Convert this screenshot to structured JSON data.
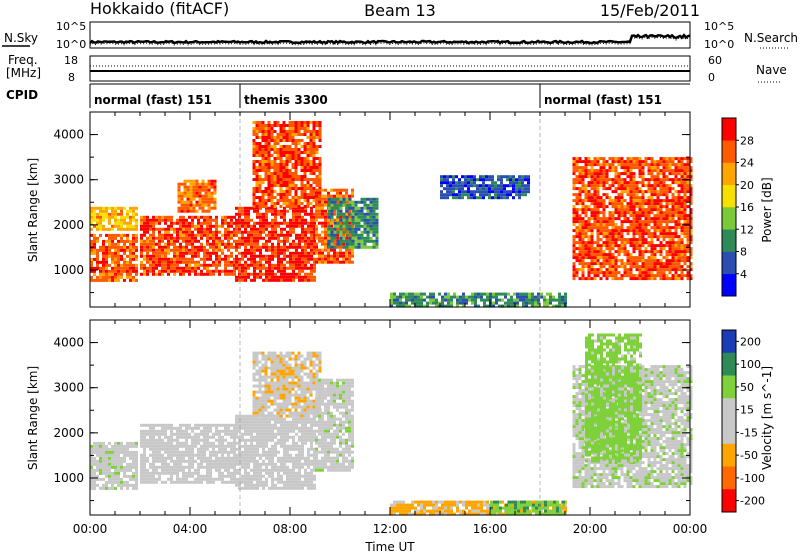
{
  "header": {
    "radar": "Hokkaido (fitACF)",
    "beam": "Beam 13",
    "date": "15/Feb/2011"
  },
  "top_labels": {
    "nsky": "N.Sky",
    "freq_line1": "Freq.",
    "freq_line2": "[MHz]",
    "cpid": "CPID",
    "nsearch": "N.Search",
    "nave": "Nave",
    "noise_ticks_left": [
      "10^5",
      "10^0"
    ],
    "noise_ticks_right": [
      "10^5",
      "10^0"
    ],
    "freq_ticks": [
      "18",
      "8"
    ],
    "nave_ticks": [
      "60",
      "0"
    ]
  },
  "cpid_segments": [
    {
      "label": "normal (fast) 151",
      "start_hour": 0,
      "end_hour": 6
    },
    {
      "label": "themis 3300",
      "start_hour": 6,
      "end_hour": 18
    },
    {
      "label": "normal (fast) 151",
      "start_hour": 18,
      "end_hour": 24
    }
  ],
  "colors": {
    "power_scale": [
      "#0000ff",
      "#2a4fb0",
      "#2e8b57",
      "#7cc93a",
      "#f5e000",
      "#ffa500",
      "#ff5a00",
      "#ff0000"
    ],
    "velocity_scale": [
      "#1a3cb4",
      "#2e8b57",
      "#7fd13b",
      "#c8c8c8",
      "#c8c8c8",
      "#ffa500",
      "#ff6a00",
      "#ff0000"
    ]
  },
  "chart_data": [
    {
      "type": "heatmap",
      "panel": "power",
      "ylabel": "Slant Range [km]",
      "xlabel": "",
      "xlim": [
        "00:00",
        "00:00"
      ],
      "ylim": [
        180,
        4500
      ],
      "xticks": [
        "00:00",
        "04:00",
        "08:00",
        "12:00",
        "16:00",
        "20:00",
        "00:00"
      ],
      "yticks": [
        1000,
        2000,
        3000,
        4000
      ],
      "colorbar": {
        "label": "Power [dB]",
        "ticks": [
          4,
          8,
          12,
          16,
          20,
          24,
          28
        ]
      },
      "regions": [
        {
          "start_hour": 0.0,
          "end_hour": 1.9,
          "range_km": [
            800,
            1800
          ],
          "value_db": 26
        },
        {
          "start_hour": 0.0,
          "end_hour": 1.9,
          "range_km": [
            1900,
            2400
          ],
          "value_db": 21
        },
        {
          "start_hour": 2.0,
          "end_hour": 5.8,
          "range_km": [
            900,
            2200
          ],
          "value_db": 27
        },
        {
          "start_hour": 3.5,
          "end_hour": 5.0,
          "range_km": [
            2300,
            3000
          ],
          "value_db": 25
        },
        {
          "start_hour": 5.8,
          "end_hour": 9.0,
          "range_km": [
            800,
            2400
          ],
          "value_db": 29
        },
        {
          "start_hour": 6.5,
          "end_hour": 9.2,
          "range_km": [
            2400,
            4300
          ],
          "value_db": 27
        },
        {
          "start_hour": 9.0,
          "end_hour": 10.5,
          "range_km": [
            1200,
            2800
          ],
          "value_db": 26
        },
        {
          "start_hour": 9.5,
          "end_hour": 11.5,
          "range_km": [
            1500,
            2600
          ],
          "value_db": 10
        },
        {
          "start_hour": 14.0,
          "end_hour": 17.5,
          "range_km": [
            2600,
            3100
          ],
          "value_db": 6
        },
        {
          "start_hour": 12.0,
          "end_hour": 19.0,
          "range_km": [
            200,
            500
          ],
          "value_db": 10
        },
        {
          "start_hour": 19.3,
          "end_hour": 24.0,
          "range_km": [
            800,
            3500
          ],
          "value_db": 27
        }
      ]
    },
    {
      "type": "heatmap",
      "panel": "velocity",
      "ylabel": "Slant Range [km]",
      "xlabel": "Time UT",
      "xlim": [
        "00:00",
        "00:00"
      ],
      "ylim": [
        180,
        4500
      ],
      "xticks": [
        "00:00",
        "04:00",
        "08:00",
        "12:00",
        "16:00",
        "20:00",
        "00:00"
      ],
      "yticks": [
        1000,
        2000,
        3000,
        4000
      ],
      "colorbar": {
        "label": "Velocity [m s^-1]",
        "ticks": [
          "200",
          "100",
          "50",
          "15",
          "-15",
          "-50",
          "-100",
          "-200"
        ]
      },
      "regions": [
        {
          "start_hour": 0.0,
          "end_hour": 1.9,
          "range_km": [
            800,
            1800
          ],
          "value_ms": 0
        },
        {
          "start_hour": 2.0,
          "end_hour": 5.8,
          "range_km": [
            900,
            2200
          ],
          "value_ms": -5
        },
        {
          "start_hour": 5.8,
          "end_hour": 9.0,
          "range_km": [
            800,
            2400
          ],
          "value_ms": -10
        },
        {
          "start_hour": 6.5,
          "end_hour": 9.2,
          "range_km": [
            2400,
            3800
          ],
          "value_ms": -40
        },
        {
          "start_hour": 9.0,
          "end_hour": 10.5,
          "range_km": [
            1200,
            3200
          ],
          "value_ms": 0
        },
        {
          "start_hour": 12.0,
          "end_hour": 19.0,
          "range_km": [
            200,
            500
          ],
          "value_ms": -60
        },
        {
          "start_hour": 16.0,
          "end_hour": 19.0,
          "range_km": [
            200,
            500
          ],
          "value_ms": 40
        },
        {
          "start_hour": 19.3,
          "end_hour": 24.0,
          "range_km": [
            800,
            3500
          ],
          "value_ms": 5
        },
        {
          "start_hour": 19.8,
          "end_hour": 22.0,
          "range_km": [
            1400,
            4200
          ],
          "value_ms": 30
        }
      ]
    }
  ]
}
